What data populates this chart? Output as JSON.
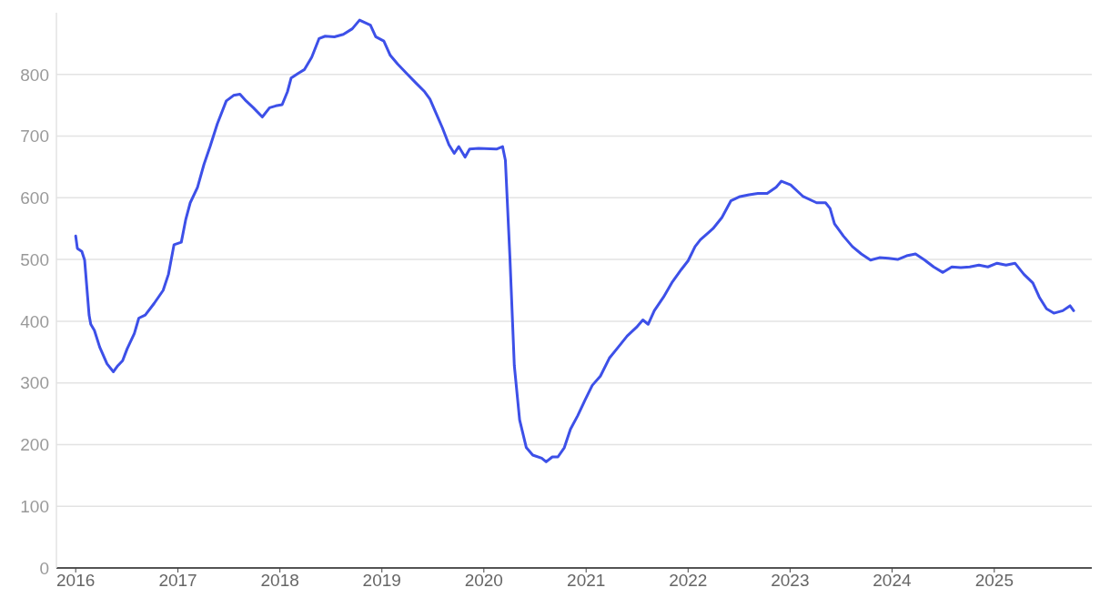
{
  "chart_data": {
    "type": "line",
    "grid": "y",
    "xlim": [
      "2015-10-24",
      "2025-12-16"
    ],
    "xticks": [
      {
        "value": "2016-01-01",
        "label": "2016"
      },
      {
        "value": "2017-01-01",
        "label": "2017"
      },
      {
        "value": "2018-01-01",
        "label": "2018"
      },
      {
        "value": "2019-01-01",
        "label": "2019"
      },
      {
        "value": "2020-01-01",
        "label": "2020"
      },
      {
        "value": "2021-01-01",
        "label": "2021"
      },
      {
        "value": "2022-01-01",
        "label": "2022"
      },
      {
        "value": "2023-01-01",
        "label": "2023"
      },
      {
        "value": "2024-01-01",
        "label": "2024"
      },
      {
        "value": "2025-01-01",
        "label": "2025"
      }
    ],
    "ylim": [
      0,
      900
    ],
    "yticks": [
      0,
      100,
      200,
      300,
      400,
      500,
      600,
      700,
      800
    ],
    "x": [
      "2016-01-01",
      "2016-01-07",
      "2016-01-23",
      "2016-02-02",
      "2016-02-18",
      "2016-02-24",
      "2016-03-08",
      "2016-03-27",
      "2016-04-22",
      "2016-05-15",
      "2016-05-31",
      "2016-06-17",
      "2016-07-03",
      "2016-07-29",
      "2016-08-14",
      "2016-09-06",
      "2016-10-08",
      "2016-11-09",
      "2016-11-28",
      "2016-12-18",
      "2017-01-13",
      "2017-01-29",
      "2017-02-14",
      "2017-03-12",
      "2017-04-04",
      "2017-04-26",
      "2017-05-22",
      "2017-06-23",
      "2017-07-19",
      "2017-08-11",
      "2017-09-02",
      "2017-09-28",
      "2017-10-30",
      "2017-11-25",
      "2017-12-17",
      "2018-01-09",
      "2018-01-28",
      "2018-02-10",
      "2018-03-08",
      "2018-03-30",
      "2018-04-25",
      "2018-05-21",
      "2018-06-12",
      "2018-07-15",
      "2018-08-16",
      "2018-09-17",
      "2018-10-13",
      "2018-11-21",
      "2018-12-10",
      "2019-01-08",
      "2019-01-31",
      "2019-02-26",
      "2019-03-30",
      "2019-05-01",
      "2019-06-03",
      "2019-06-22",
      "2019-07-11",
      "2019-08-06",
      "2019-08-29",
      "2019-09-17",
      "2019-10-03",
      "2019-10-26",
      "2019-11-11",
      "2019-12-13",
      "2020-02-15",
      "2020-03-08",
      "2020-03-18",
      "2020-04-03",
      "2020-04-19",
      "2020-05-08",
      "2020-06-01",
      "2020-06-24",
      "2020-07-26",
      "2020-08-11",
      "2020-09-02",
      "2020-09-22",
      "2020-10-15",
      "2020-11-06",
      "2020-12-02",
      "2020-12-28",
      "2021-01-23",
      "2021-02-21",
      "2021-03-25",
      "2021-04-26",
      "2021-05-28",
      "2021-06-30",
      "2021-07-23",
      "2021-08-11",
      "2021-09-02",
      "2021-10-05",
      "2021-11-06",
      "2021-12-08",
      "2022-01-01",
      "2022-01-26",
      "2022-02-14",
      "2022-03-31",
      "2022-05-02",
      "2022-06-03",
      "2022-07-06",
      "2022-08-07",
      "2022-09-08",
      "2022-10-11",
      "2022-11-12",
      "2022-12-01",
      "2023-01-03",
      "2023-02-17",
      "2023-04-06",
      "2023-05-08",
      "2023-05-24",
      "2023-06-09",
      "2023-07-11",
      "2023-08-12",
      "2023-09-13",
      "2023-10-16",
      "2023-11-17",
      "2023-12-19",
      "2024-01-21",
      "2024-02-22",
      "2024-03-25",
      "2024-04-27",
      "2024-05-29",
      "2024-07-01",
      "2024-08-02",
      "2024-09-03",
      "2024-10-05",
      "2024-11-07",
      "2024-12-09",
      "2025-01-11",
      "2025-02-12",
      "2025-03-16",
      "2025-04-17",
      "2025-05-19",
      "2025-06-11",
      "2025-07-07",
      "2025-08-02",
      "2025-09-03",
      "2025-09-29",
      "2025-10-12"
    ],
    "series": [
      {
        "color": "#3d50e8",
        "values": [
          538,
          518,
          513,
          499,
          410,
          395,
          385,
          358,
          331,
          318,
          328,
          336,
          355,
          380,
          405,
          410,
          429,
          450,
          476,
          524,
          528,
          565,
          592,
          617,
          654,
          683,
          720,
          757,
          766,
          768,
          757,
          746,
          731,
          746,
          749,
          751,
          772,
          794,
          802,
          808,
          828,
          858,
          862,
          861,
          865,
          874,
          888,
          880,
          861,
          854,
          831,
          817,
          802,
          787,
          772,
          760,
          740,
          713,
          686,
          672,
          683,
          666,
          679,
          680,
          679,
          683,
          661,
          506,
          328,
          240,
          195,
          183,
          178,
          172,
          180,
          180,
          195,
          225,
          247,
          272,
          296,
          311,
          340,
          358,
          376,
          390,
          402,
          395,
          417,
          439,
          464,
          484,
          498,
          521,
          532,
          550,
          568,
          595,
          602,
          605,
          607,
          607,
          617,
          627,
          621,
          602,
          592,
          592,
          583,
          558,
          538,
          521,
          509,
          499,
          503,
          502,
          500,
          506,
          509,
          499,
          488,
          479,
          488,
          487,
          488,
          491,
          488,
          494,
          491,
          494,
          476,
          462,
          439,
          420,
          413,
          417,
          425,
          417
        ]
      }
    ]
  }
}
